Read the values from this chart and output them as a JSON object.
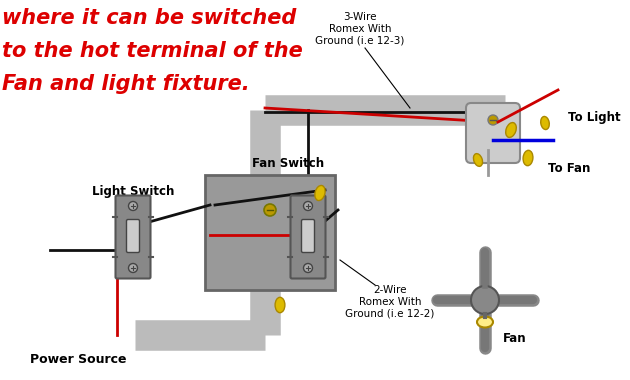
{
  "bg_color": "#ffffff",
  "title_lines": [
    "where it can be switched",
    "to the hot terminal of the",
    "Fan and light fixture."
  ],
  "title_color": "#dd0000",
  "title_fontsize": 15,
  "labels": {
    "light_switch": "Light Switch",
    "fan_switch": "Fan Switch",
    "power_source": "Power Source",
    "to_fan": "To Fan",
    "to_light": "To Light",
    "fan": "Fan",
    "three_wire": "3-Wire\nRomex With\nGround (i.e 12-3)",
    "two_wire": "2-Wire\nRomex With\nGround (i.e 12-2)"
  },
  "wire_colors": {
    "black": "#111111",
    "red": "#cc0000",
    "white": "#999999",
    "gray": "#aaaaaa",
    "blue": "#0000dd",
    "bare": "#888888"
  },
  "switch_body_color": "#888888",
  "switch_edge_color": "#555555",
  "switch_lever_color": "#cccccc",
  "box_color": "#999999",
  "box_edge_color": "#666666",
  "conduit_color": "#bbbbbb",
  "conduit_edge_color": "#999999",
  "connector_color": "#ddbb00",
  "connector_edge": "#aa8800",
  "canopy_color": "#cccccc",
  "fan_color": "#888888",
  "screw_color": "#bb9900"
}
